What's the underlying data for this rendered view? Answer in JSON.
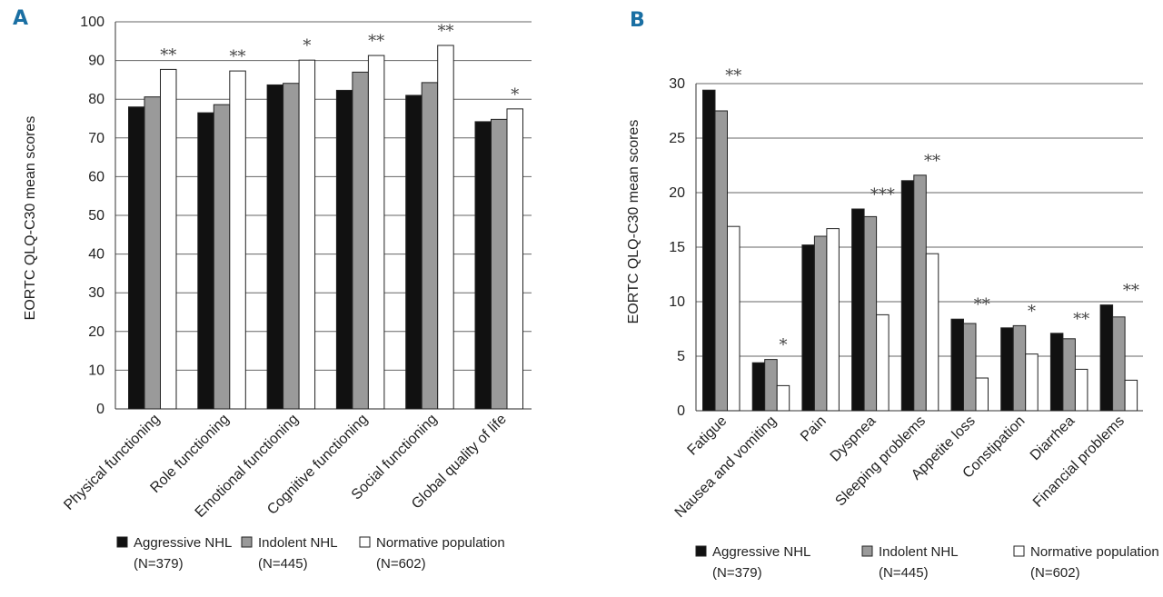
{
  "colors": {
    "aggressive": "#111111",
    "indolent": "#9a9a9a",
    "normative": "#ffffff",
    "grid": "#666666",
    "panel_letter": "#1a6fa3"
  },
  "chart_data": [
    {
      "panel": "A",
      "type": "bar",
      "ylabel": "EORTC QLQ-C30 mean scores",
      "ylim": [
        0,
        100
      ],
      "yticks": [
        0,
        10,
        20,
        30,
        40,
        50,
        60,
        70,
        80,
        90,
        100
      ],
      "categories": [
        "Physical functioning",
        "Role functioning",
        "Emotional functioning",
        "Cognitive functioning",
        "Social functioning",
        "Global quality of life"
      ],
      "series": [
        {
          "name": "Aggressive NHL",
          "values": [
            78,
            76.5,
            83.7,
            82.3,
            81,
            74.2
          ]
        },
        {
          "name": "Indolent NHL",
          "values": [
            80.6,
            78.6,
            84.1,
            87,
            84.3,
            74.8
          ]
        },
        {
          "name": "Normative population",
          "values": [
            87.7,
            87.3,
            90.1,
            91.3,
            93.9,
            77.5
          ]
        }
      ],
      "significance": [
        "**",
        "**",
        "*",
        "**",
        "**",
        "*"
      ],
      "legend": [
        {
          "label": "Aggressive NHL",
          "n": "(N=379)"
        },
        {
          "label": "Indolent NHL",
          "n": "(N=445)"
        },
        {
          "label": "Normative population",
          "n": "(N=602)"
        }
      ]
    },
    {
      "panel": "B",
      "type": "bar",
      "ylabel": "EORTC QLQ-C30 mean scores",
      "ylim": [
        0,
        30
      ],
      "yticks": [
        0,
        5,
        10,
        15,
        20,
        25,
        30
      ],
      "categories": [
        "Fatigue",
        "Nausea and vomiting",
        "Pain",
        "Dyspnea",
        "Sleeping problems",
        "Appetite loss",
        "Constipation",
        "Diarrhea",
        "Financial problems"
      ],
      "series": [
        {
          "name": "Aggressive NHL",
          "values": [
            29.4,
            4.4,
            15.2,
            18.5,
            21.1,
            8.4,
            7.6,
            7.1,
            9.7
          ]
        },
        {
          "name": "Indolent NHL",
          "values": [
            27.5,
            4.7,
            16,
            17.8,
            21.6,
            8,
            7.8,
            6.6,
            8.6
          ]
        },
        {
          "name": "Normative population",
          "values": [
            16.9,
            2.3,
            16.7,
            8.8,
            14.4,
            3,
            5.2,
            3.8,
            2.8
          ]
        }
      ],
      "significance": [
        "**",
        "*",
        "",
        "***",
        "**",
        "**",
        "*",
        "**",
        "**"
      ],
      "legend": [
        {
          "label": "Aggressive NHL",
          "n": "(N=379)"
        },
        {
          "label": "Indolent NHL",
          "n": "(N=445)"
        },
        {
          "label": "Normative population",
          "n": "(N=602)"
        }
      ]
    }
  ]
}
